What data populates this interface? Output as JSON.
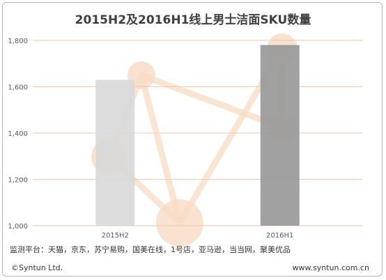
{
  "chart_data": {
    "type": "bar",
    "title": "2015H2及2016H1线上男士洁面SKU数量",
    "categories": [
      "2015H2",
      "2016H1"
    ],
    "values": [
      1630,
      1780
    ],
    "bar_colors": [
      "#d9d9d9",
      "#999999"
    ],
    "ylim": [
      1000,
      1800
    ],
    "yticks": [
      "1,000",
      "1,200",
      "1,400",
      "1,600",
      "1,800"
    ],
    "ytick_values": [
      1000,
      1200,
      1400,
      1600,
      1800
    ],
    "grid": true,
    "grid_color": "#f3c7b0",
    "xlabel": "",
    "ylabel": ""
  },
  "footer": {
    "source": "监测平台：天猫，京东，苏宁易购，国美在线，1号店，亚马逊，当当网，聚美优品",
    "copyright": "©Syntun Ltd.",
    "website": "www.syntun.com.cn"
  },
  "watermark_color": "#f8dcc4"
}
